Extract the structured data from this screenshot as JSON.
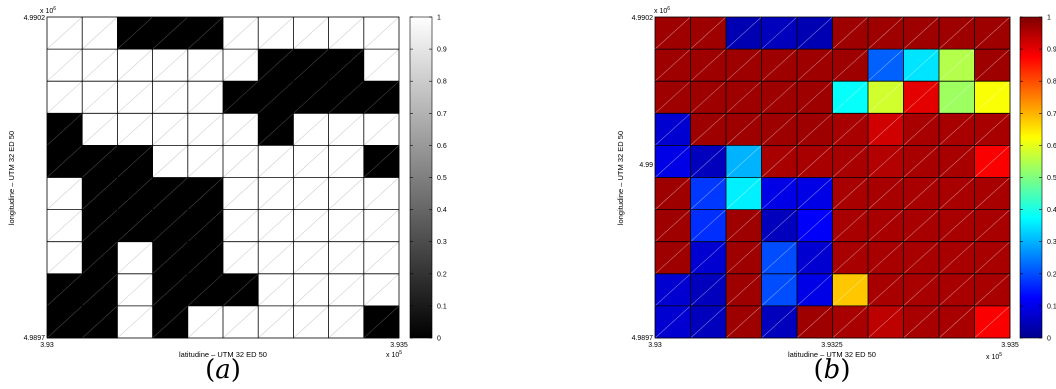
{
  "chart_data": [
    {
      "type": "heatmap",
      "panel_label": "a",
      "colormap": "gray",
      "xlabel": "latitudine – UTM 32 ED 50",
      "ylabel": "longitudine – UTM 32 ED 50",
      "x_multiplier": "x 10",
      "x_multiplier_exp": "5",
      "y_multiplier": "x 10",
      "y_multiplier_exp": "6",
      "xlim": [
        3.93,
        3.935
      ],
      "ylim": [
        4.9897,
        4.9902
      ],
      "xticks": [
        "3.93",
        "3.935"
      ],
      "yticks": [
        "4.9902",
        "4.9897"
      ],
      "clim": [
        0,
        1
      ],
      "colorbar_ticks": [
        "0",
        "0.1",
        "0.2",
        "0.3",
        "0.4",
        "0.5",
        "0.6",
        "0.7",
        "0.8",
        "0.9",
        "1"
      ],
      "grid": true,
      "rows": 10,
      "cols": 10,
      "values": [
        [
          1,
          1,
          0,
          0,
          0,
          1,
          1,
          1,
          1,
          1
        ],
        [
          1,
          1,
          1,
          1,
          1,
          1,
          0,
          0,
          0,
          1
        ],
        [
          1,
          1,
          1,
          1,
          1,
          0,
          0,
          0,
          0,
          0
        ],
        [
          0,
          1,
          1,
          1,
          1,
          1,
          0,
          1,
          1,
          1
        ],
        [
          0,
          0,
          0,
          1,
          1,
          1,
          1,
          1,
          1,
          0
        ],
        [
          1,
          0,
          0,
          0,
          0,
          1,
          1,
          1,
          1,
          1
        ],
        [
          1,
          0,
          0,
          0,
          0,
          1,
          1,
          1,
          1,
          1
        ],
        [
          1,
          0,
          1,
          0,
          0,
          1,
          1,
          1,
          1,
          1
        ],
        [
          0,
          0,
          1,
          0,
          0,
          0,
          1,
          1,
          1,
          1
        ],
        [
          0,
          0,
          1,
          0,
          1,
          1,
          1,
          1,
          1,
          0
        ]
      ]
    },
    {
      "type": "heatmap",
      "panel_label": "b",
      "colormap": "jet",
      "xlabel": "latitudine – UTM 32 ED 50",
      "ylabel": "longitudine – UTM 32 ED 50",
      "x_multiplier": "x 10",
      "x_multiplier_exp": "5",
      "y_multiplier": "x 10",
      "y_multiplier_exp": "6",
      "xlim": [
        3.93,
        3.935
      ],
      "ylim": [
        4.9897,
        4.9902
      ],
      "xticks": [
        "3.93",
        "3.9325",
        "3.935"
      ],
      "yticks": [
        "4.9902",
        "4.99",
        "4.9897"
      ],
      "clim": [
        0,
        1
      ],
      "colorbar_ticks": [
        "0",
        "0.1",
        "0.2",
        "0.3",
        "0.4",
        "0.5",
        "0.6",
        "0.7",
        "0.8",
        "0.9",
        "1"
      ],
      "grid": true,
      "rows": 10,
      "cols": 10,
      "values": [
        [
          0.97,
          0.97,
          0.05,
          0.06,
          0.05,
          0.97,
          0.97,
          0.97,
          0.97,
          0.97
        ],
        [
          0.97,
          0.97,
          0.97,
          0.97,
          0.97,
          0.97,
          0.22,
          0.35,
          0.55,
          0.97
        ],
        [
          0.97,
          0.97,
          0.97,
          0.97,
          0.97,
          0.38,
          0.58,
          0.9,
          0.53,
          0.62
        ],
        [
          0.08,
          0.97,
          0.97,
          0.97,
          0.97,
          0.96,
          0.92,
          0.96,
          0.96,
          0.96
        ],
        [
          0.1,
          0.06,
          0.3,
          0.96,
          0.96,
          0.96,
          0.95,
          0.96,
          0.96,
          0.88
        ],
        [
          0.97,
          0.18,
          0.36,
          0.1,
          0.1,
          0.96,
          0.96,
          0.96,
          0.96,
          0.96
        ],
        [
          0.97,
          0.17,
          0.97,
          0.06,
          0.12,
          0.96,
          0.96,
          0.96,
          0.96,
          0.96
        ],
        [
          0.97,
          0.08,
          0.97,
          0.2,
          0.08,
          0.96,
          0.96,
          0.96,
          0.96,
          0.96
        ],
        [
          0.08,
          0.06,
          0.97,
          0.2,
          0.1,
          0.68,
          0.96,
          0.96,
          0.96,
          0.96
        ],
        [
          0.08,
          0.06,
          0.97,
          0.06,
          0.97,
          0.96,
          0.94,
          0.96,
          0.96,
          0.88
        ]
      ]
    }
  ]
}
